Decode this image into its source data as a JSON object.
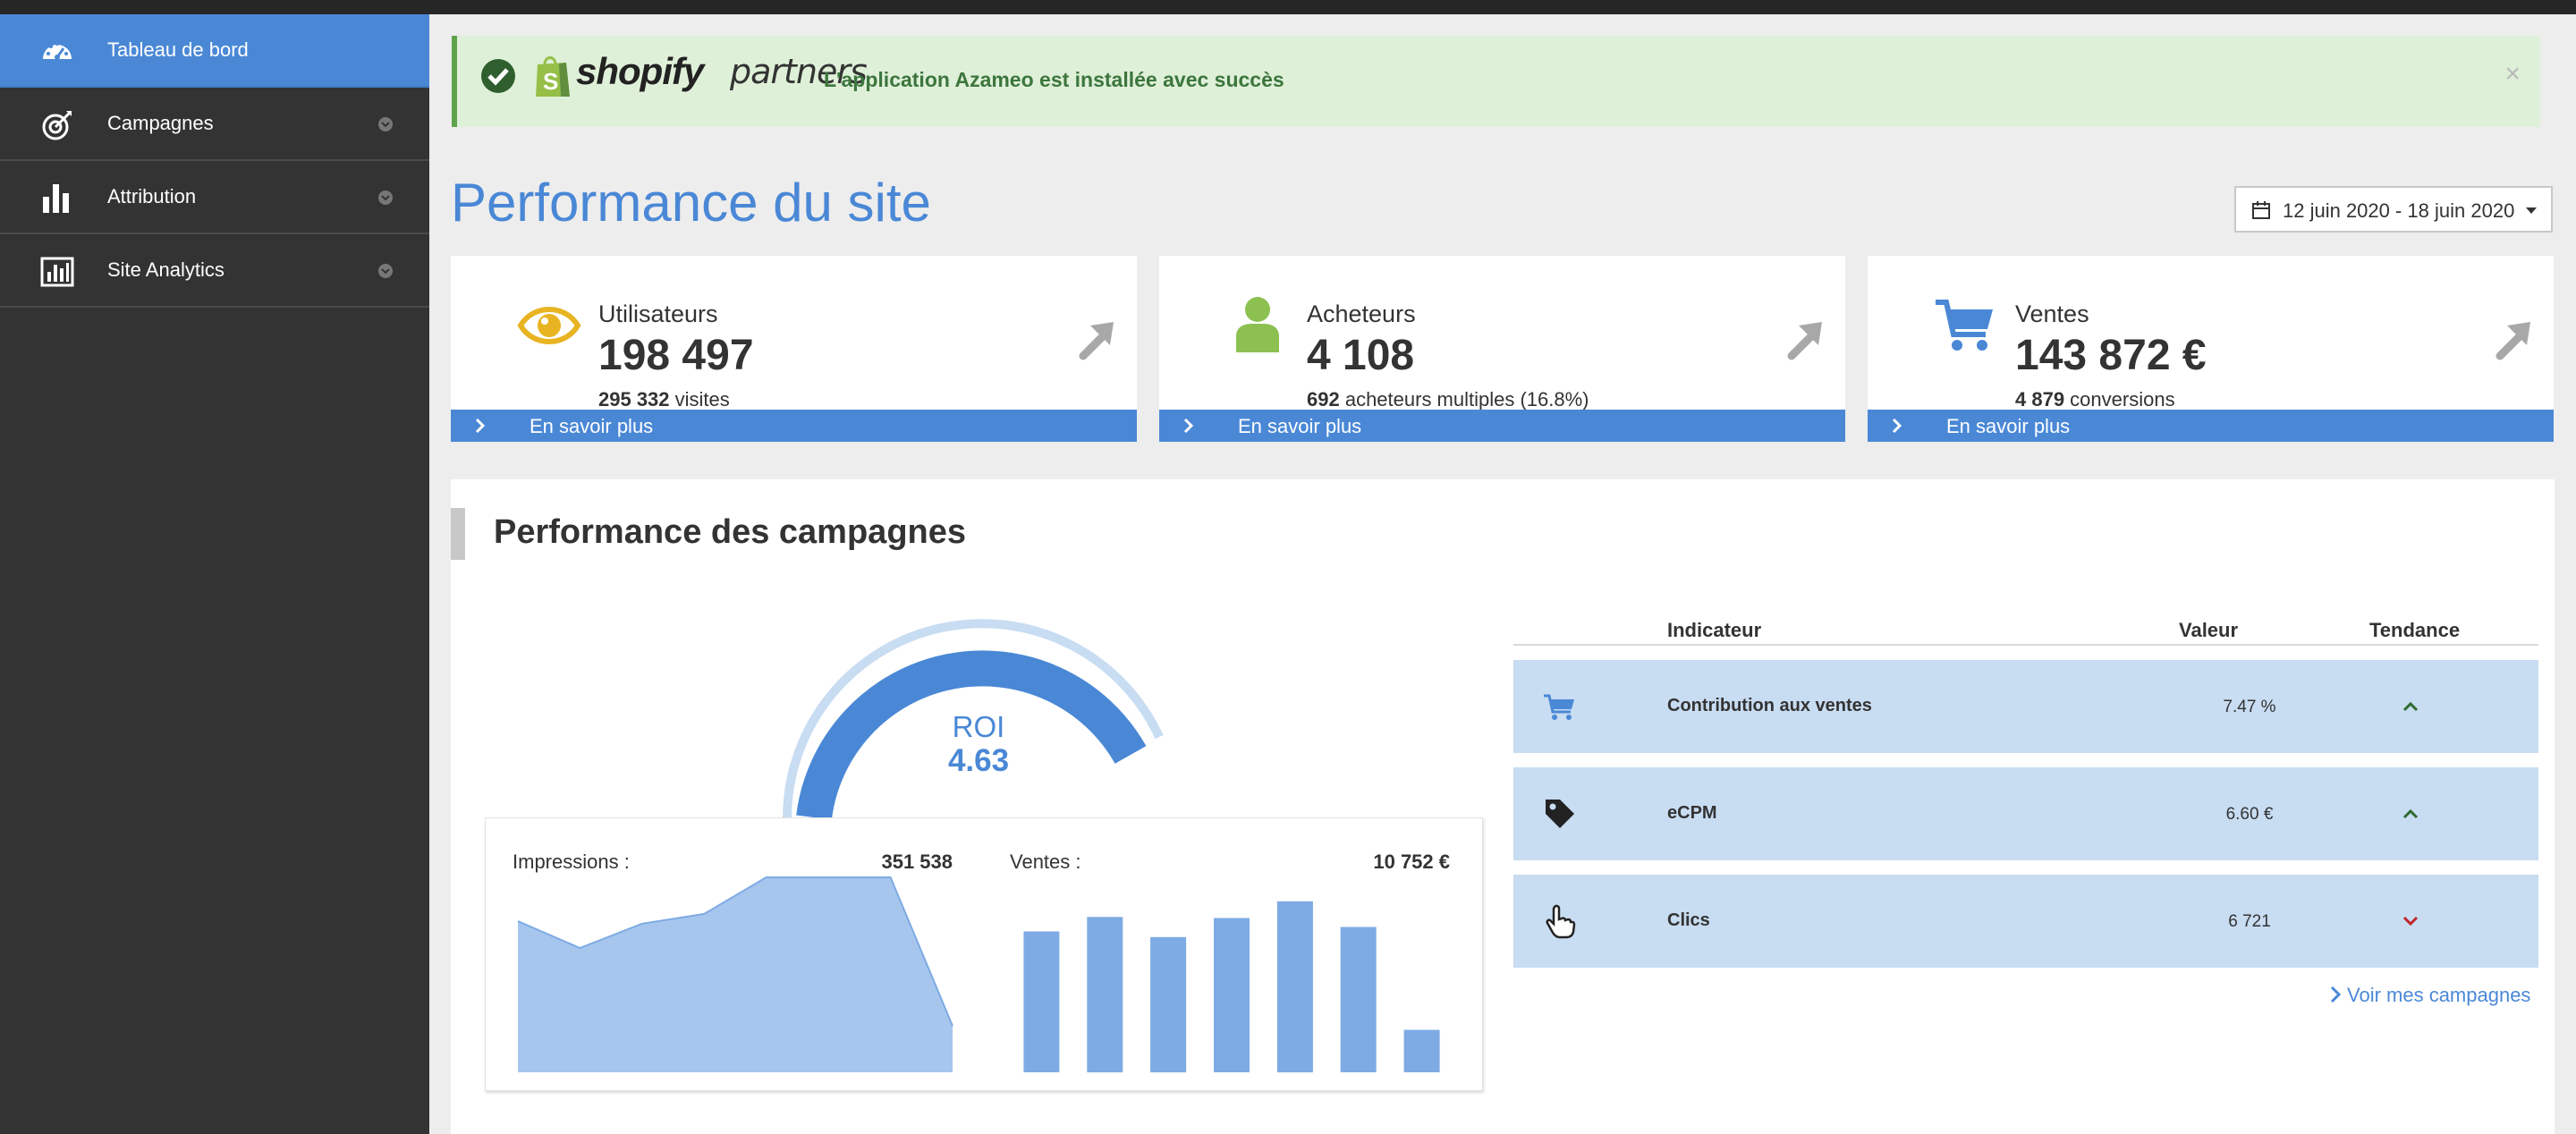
{
  "sidebar": {
    "items": [
      {
        "label": "Tableau de bord",
        "icon": "dashboard-icon",
        "active": true
      },
      {
        "label": "Campagnes",
        "icon": "target-icon"
      },
      {
        "label": "Attribution",
        "icon": "bar-chart-icon"
      },
      {
        "label": "Site Analytics",
        "icon": "analytics-icon"
      }
    ]
  },
  "alert": {
    "brand_shopify": "shopify",
    "brand_partners": "partners",
    "message": "L'application Azameo est installée avec succès",
    "close": "×"
  },
  "page": {
    "title": "Performance du site",
    "date_range": "12 juin 2020 - 18 juin 2020"
  },
  "kpis": [
    {
      "label": "Utilisateurs",
      "value": "198 497",
      "sub_bold": "295 332",
      "sub_text": " visites",
      "footer": "En savoir plus",
      "icon": "eye-icon",
      "icon_color": "#e8b422"
    },
    {
      "label": "Acheteurs",
      "value": "4 108",
      "sub_bold": "692",
      "sub_text": " acheteurs multiples (16.8%)",
      "footer": "En savoir plus",
      "icon": "user-icon",
      "icon_color": "#8cc152"
    },
    {
      "label": "Ventes",
      "value": "143 872 €",
      "sub_bold": "4 879",
      "sub_text": " conversions",
      "footer": "En savoir plus",
      "icon": "cart-icon",
      "icon_color": "#4a88d6"
    }
  ],
  "campaigns": {
    "title": "Performance des campagnes",
    "roi_label": "ROI",
    "roi_value": "4.63",
    "impressions_label": "Impressions :",
    "impressions_value": "351 538",
    "ventes_label": "Ventes :",
    "ventes_value": "10 752 €",
    "link": "Voir mes campagnes"
  },
  "chart_data": [
    {
      "type": "area",
      "title": "Impressions :",
      "x": [
        1,
        2,
        3,
        4,
        5,
        6,
        7,
        8
      ],
      "values": [
        62000,
        51000,
        61000,
        65000,
        80000,
        80000,
        80000,
        19000
      ],
      "ylim": [
        0,
        80000
      ]
    },
    {
      "type": "bar",
      "title": "Ventes :",
      "categories": [
        "1",
        "2",
        "3",
        "4",
        "5",
        "6",
        "7"
      ],
      "values": [
        1260,
        1390,
        1210,
        1380,
        1530,
        1300,
        380
      ],
      "ylim": [
        0,
        1600
      ]
    }
  ],
  "indicators": {
    "headers": {
      "indicator": "Indicateur",
      "value": "Valeur",
      "trend": "Tendance"
    },
    "rows": [
      {
        "icon": "cart-icon",
        "name": "Contribution aux ventes",
        "value": "7.47 %",
        "trend": "up"
      },
      {
        "icon": "tag-icon",
        "name": "eCPM",
        "value": "6.60 €",
        "trend": "up"
      },
      {
        "icon": "pointer-hand-icon",
        "name": "Clics",
        "value": "6 721",
        "trend": "down"
      }
    ]
  },
  "colors": {
    "accent": "#4a88d6",
    "sidebar": "#333333",
    "success": "#3c763d",
    "up": "#2e6b2e",
    "down": "#c0262c"
  }
}
